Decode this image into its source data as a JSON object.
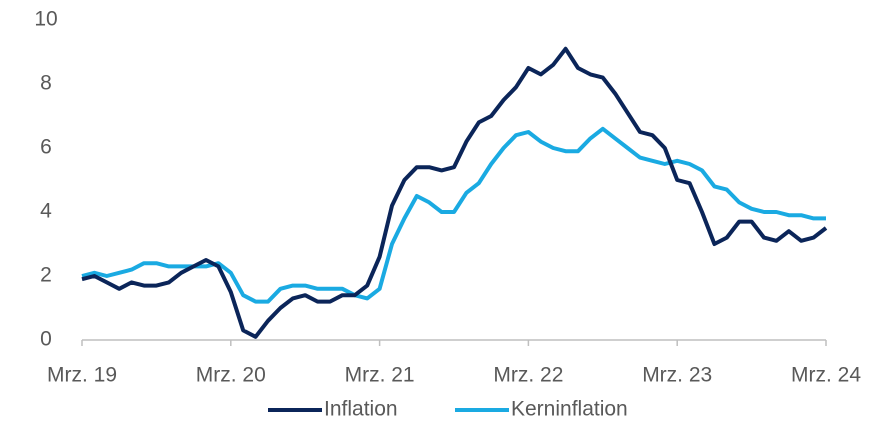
{
  "chart_data": {
    "type": "line",
    "categories": [
      "Mrz. 19",
      null,
      null,
      null,
      null,
      null,
      null,
      null,
      null,
      null,
      null,
      null,
      "Mrz. 20",
      null,
      null,
      null,
      null,
      null,
      null,
      null,
      null,
      null,
      null,
      null,
      "Mrz. 21",
      null,
      null,
      null,
      null,
      null,
      null,
      null,
      null,
      null,
      null,
      null,
      "Mrz. 22",
      null,
      null,
      null,
      null,
      null,
      null,
      null,
      null,
      null,
      null,
      null,
      "Mrz. 23",
      null,
      null,
      null,
      null,
      null,
      null,
      null,
      null,
      null,
      null,
      null,
      "Mrz. 24"
    ],
    "series": [
      {
        "name": "Inflation",
        "color": "#0b2559",
        "values": [
          1.9,
          2.0,
          1.8,
          1.6,
          1.8,
          1.7,
          1.7,
          1.8,
          2.1,
          2.3,
          2.5,
          2.3,
          1.5,
          0.3,
          0.1,
          0.6,
          1.0,
          1.3,
          1.4,
          1.2,
          1.2,
          1.4,
          1.4,
          1.7,
          2.6,
          4.2,
          5.0,
          5.4,
          5.4,
          5.3,
          5.4,
          6.2,
          6.8,
          7.0,
          7.5,
          7.9,
          8.5,
          8.3,
          8.6,
          9.1,
          8.5,
          8.3,
          8.2,
          7.7,
          7.1,
          6.5,
          6.4,
          6.0,
          5.0,
          4.9,
          4.0,
          3.0,
          3.2,
          3.7,
          3.7,
          3.2,
          3.1,
          3.4,
          3.1,
          3.2,
          3.5
        ]
      },
      {
        "name": "Kerninflation",
        "color": "#1aaae2",
        "values": [
          2.0,
          2.1,
          2.0,
          2.1,
          2.2,
          2.4,
          2.4,
          2.3,
          2.3,
          2.3,
          2.3,
          2.4,
          2.1,
          1.4,
          1.2,
          1.2,
          1.6,
          1.7,
          1.7,
          1.6,
          1.6,
          1.6,
          1.4,
          1.3,
          1.6,
          3.0,
          3.8,
          4.5,
          4.3,
          4.0,
          4.0,
          4.6,
          4.9,
          5.5,
          6.0,
          6.4,
          6.5,
          6.2,
          6.0,
          5.9,
          5.9,
          6.3,
          6.6,
          6.3,
          6.0,
          5.7,
          5.6,
          5.5,
          5.6,
          5.5,
          5.3,
          4.8,
          4.7,
          4.3,
          4.1,
          4.0,
          4.0,
          3.9,
          3.9,
          3.8,
          3.8
        ]
      }
    ],
    "ylim": [
      0,
      10
    ],
    "yticks": [
      0,
      2,
      4,
      6,
      8,
      10
    ],
    "grid": false,
    "legend": "bottom"
  }
}
